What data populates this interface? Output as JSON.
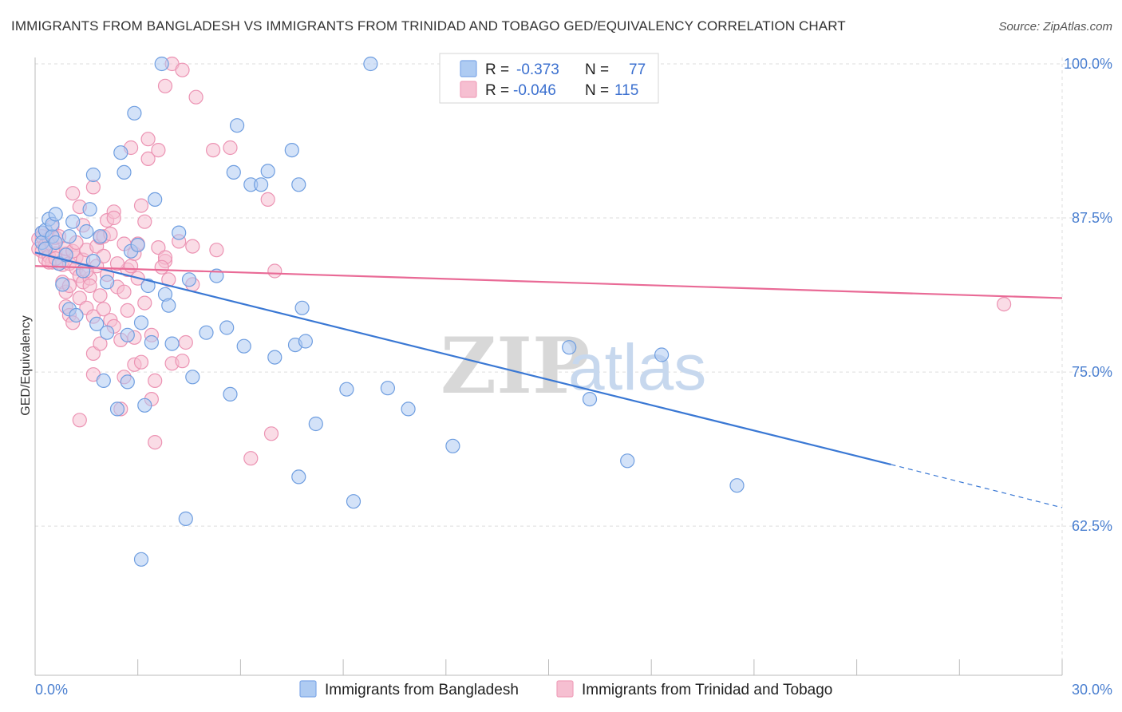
{
  "header": {
    "title": "IMMIGRANTS FROM BANGLADESH VS IMMIGRANTS FROM TRINIDAD AND TOBAGO GED/EQUIVALENCY CORRELATION CHART",
    "source": "Source: ZipAtlas.com"
  },
  "watermark": {
    "zip": "ZIP",
    "atlas": "atlas"
  },
  "legend": {
    "rows": [
      {
        "r_label": "R =",
        "r_value": "-0.373",
        "n_label": "N =",
        "n_value": "77",
        "color": "#7ea8e8"
      },
      {
        "r_label": "R =",
        "r_value": "-0.046",
        "n_label": "N =",
        "n_value": "115",
        "color": "#f0a0bb"
      }
    ]
  },
  "bottom_legend": {
    "series1": "Immigrants from Bangladesh",
    "series2": "Immigrants from Trinidad and Tobago"
  },
  "chart_data": {
    "type": "scatter",
    "title": "IMMIGRANTS FROM BANGLADESH VS IMMIGRANTS FROM TRINIDAD AND TOBAGO GED/EQUIVALENCY CORRELATION CHART",
    "xlabel": "",
    "ylabel": "GED/Equivalency",
    "xlim": [
      0,
      30
    ],
    "ylim": [
      50.4,
      101.5
    ],
    "x_tick_labels": [
      "0.0%",
      "30.0%"
    ],
    "y_tick_labels": [
      "100.0%",
      "87.5%",
      "75.0%",
      "62.5%"
    ],
    "y_ticks": [
      100,
      87.5,
      75,
      62.5
    ],
    "grid": true,
    "colors": {
      "blue": "#3a78d4",
      "pink": "#e96a96",
      "blue_fill": "#aecbf2",
      "pink_fill": "#f6bfd1"
    },
    "series": [
      {
        "name": "Immigrants from Bangladesh",
        "color": "#3a78d4",
        "points": [
          [
            0.2,
            86.3
          ],
          [
            0.2,
            85.5
          ],
          [
            0.3,
            85.0
          ],
          [
            0.3,
            86.5
          ],
          [
            0.4,
            87.4
          ],
          [
            0.5,
            86.0
          ],
          [
            0.5,
            87.0
          ],
          [
            0.6,
            87.8
          ],
          [
            0.6,
            85.5
          ],
          [
            0.7,
            83.8
          ],
          [
            0.8,
            82.1
          ],
          [
            0.9,
            84.5
          ],
          [
            1.0,
            86.0
          ],
          [
            1.0,
            80.1
          ],
          [
            1.1,
            87.2
          ],
          [
            1.2,
            79.6
          ],
          [
            1.4,
            83.2
          ],
          [
            1.5,
            86.4
          ],
          [
            1.6,
            88.2
          ],
          [
            1.7,
            91.0
          ],
          [
            1.7,
            84.0
          ],
          [
            1.8,
            78.9
          ],
          [
            1.9,
            86.0
          ],
          [
            2.0,
            74.3
          ],
          [
            2.1,
            82.3
          ],
          [
            2.1,
            78.2
          ],
          [
            2.4,
            72.0
          ],
          [
            2.5,
            92.8
          ],
          [
            2.6,
            91.2
          ],
          [
            2.7,
            78.0
          ],
          [
            2.7,
            74.2
          ],
          [
            2.8,
            84.8
          ],
          [
            2.9,
            96.0
          ],
          [
            3.0,
            85.3
          ],
          [
            3.1,
            79.0
          ],
          [
            3.2,
            72.3
          ],
          [
            3.3,
            82.0
          ],
          [
            3.4,
            77.4
          ],
          [
            3.5,
            89.0
          ],
          [
            3.7,
            100.0
          ],
          [
            3.8,
            81.3
          ],
          [
            3.9,
            80.4
          ],
          [
            4.0,
            77.3
          ],
          [
            4.2,
            86.3
          ],
          [
            4.5,
            82.5
          ],
          [
            4.6,
            74.6
          ],
          [
            5.0,
            78.2
          ],
          [
            5.3,
            82.8
          ],
          [
            5.6,
            78.6
          ],
          [
            5.7,
            73.2
          ],
          [
            5.8,
            91.2
          ],
          [
            5.9,
            95.0
          ],
          [
            6.1,
            77.1
          ],
          [
            6.3,
            90.2
          ],
          [
            6.6,
            90.2
          ],
          [
            6.8,
            91.3
          ],
          [
            7.0,
            76.2
          ],
          [
            7.5,
            93.0
          ],
          [
            7.6,
            77.2
          ],
          [
            7.7,
            90.2
          ],
          [
            7.8,
            80.2
          ],
          [
            7.9,
            77.5
          ],
          [
            8.2,
            70.8
          ],
          [
            9.1,
            73.6
          ],
          [
            9.3,
            64.5
          ],
          [
            9.8,
            100.0
          ],
          [
            10.3,
            73.7
          ],
          [
            10.9,
            72.0
          ],
          [
            12.2,
            69.0
          ],
          [
            15.6,
            77.0
          ],
          [
            16.2,
            72.8
          ],
          [
            17.3,
            67.8
          ],
          [
            18.3,
            76.4
          ],
          [
            20.5,
            65.8
          ],
          [
            3.1,
            59.8
          ],
          [
            4.4,
            63.1
          ],
          [
            7.7,
            66.5
          ]
        ]
      },
      {
        "name": "Immigrants from Trinidad and Tobago",
        "color": "#e96a96",
        "points": [
          [
            0.1,
            85.8
          ],
          [
            0.1,
            85.0
          ],
          [
            0.2,
            86.3
          ],
          [
            0.2,
            84.8
          ],
          [
            0.2,
            86.0
          ],
          [
            0.3,
            84.2
          ],
          [
            0.3,
            85.3
          ],
          [
            0.4,
            85.8
          ],
          [
            0.4,
            84.4
          ],
          [
            0.5,
            86.8
          ],
          [
            0.5,
            83.9
          ],
          [
            0.5,
            85.3
          ],
          [
            0.6,
            84.6
          ],
          [
            0.6,
            85.9
          ],
          [
            0.7,
            83.8
          ],
          [
            0.7,
            86.0
          ],
          [
            0.8,
            83.7
          ],
          [
            0.8,
            84.0
          ],
          [
            0.8,
            82.3
          ],
          [
            0.9,
            84.6
          ],
          [
            0.9,
            81.5
          ],
          [
            0.9,
            80.3
          ],
          [
            1.0,
            79.6
          ],
          [
            1.0,
            83.8
          ],
          [
            1.0,
            82.0
          ],
          [
            1.1,
            89.5
          ],
          [
            1.1,
            79.0
          ],
          [
            1.2,
            84.3
          ],
          [
            1.2,
            83.4
          ],
          [
            1.3,
            82.8
          ],
          [
            1.3,
            81.0
          ],
          [
            1.3,
            71.1
          ],
          [
            1.3,
            88.4
          ],
          [
            1.4,
            86.9
          ],
          [
            1.4,
            84.1
          ],
          [
            1.4,
            82.3
          ],
          [
            1.5,
            84.9
          ],
          [
            1.5,
            80.2
          ],
          [
            1.6,
            82.6
          ],
          [
            1.7,
            90.0
          ],
          [
            1.7,
            76.5
          ],
          [
            1.7,
            74.8
          ],
          [
            1.7,
            79.5
          ],
          [
            1.8,
            85.2
          ],
          [
            1.8,
            83.6
          ],
          [
            1.9,
            81.2
          ],
          [
            1.9,
            85.9
          ],
          [
            1.9,
            77.3
          ],
          [
            2.0,
            80.1
          ],
          [
            2.0,
            86.0
          ],
          [
            2.1,
            87.3
          ],
          [
            2.1,
            82.9
          ],
          [
            2.2,
            79.2
          ],
          [
            2.3,
            88.0
          ],
          [
            2.3,
            87.5
          ],
          [
            2.3,
            78.7
          ],
          [
            2.4,
            81.9
          ],
          [
            2.5,
            77.6
          ],
          [
            2.5,
            72.0
          ],
          [
            2.6,
            85.4
          ],
          [
            2.6,
            74.6
          ],
          [
            2.7,
            83.3
          ],
          [
            2.7,
            80.0
          ],
          [
            2.8,
            83.6
          ],
          [
            2.8,
            93.2
          ],
          [
            2.9,
            84.6
          ],
          [
            2.9,
            75.6
          ],
          [
            2.9,
            77.8
          ],
          [
            3.0,
            85.4
          ],
          [
            3.1,
            75.8
          ],
          [
            3.1,
            88.5
          ],
          [
            3.2,
            80.6
          ],
          [
            3.2,
            87.2
          ],
          [
            3.3,
            93.9
          ],
          [
            3.3,
            92.3
          ],
          [
            3.4,
            72.8
          ],
          [
            3.4,
            78.0
          ],
          [
            3.5,
            69.3
          ],
          [
            3.5,
            74.3
          ],
          [
            3.6,
            93.0
          ],
          [
            3.6,
            85.1
          ],
          [
            3.8,
            84.0
          ],
          [
            3.8,
            84.3
          ],
          [
            3.8,
            98.2
          ],
          [
            3.9,
            82.5
          ],
          [
            4.0,
            75.7
          ],
          [
            4.0,
            100.0
          ],
          [
            4.2,
            85.6
          ],
          [
            4.3,
            99.5
          ],
          [
            4.3,
            75.9
          ],
          [
            4.4,
            77.4
          ],
          [
            4.6,
            85.2
          ],
          [
            4.6,
            82.1
          ],
          [
            4.7,
            97.3
          ],
          [
            5.2,
            93.0
          ],
          [
            5.3,
            84.9
          ],
          [
            5.7,
            93.2
          ],
          [
            6.3,
            68.0
          ],
          [
            6.8,
            89.0
          ],
          [
            6.9,
            70.0
          ],
          [
            7.0,
            83.2
          ],
          [
            28.3,
            80.5
          ],
          [
            0.4,
            83.9
          ],
          [
            0.6,
            84.2
          ],
          [
            0.9,
            85.0
          ],
          [
            1.1,
            84.8
          ],
          [
            1.2,
            85.5
          ],
          [
            1.5,
            83.2
          ],
          [
            1.6,
            82.0
          ],
          [
            2.0,
            84.4
          ],
          [
            2.2,
            86.2
          ],
          [
            2.4,
            83.8
          ],
          [
            2.6,
            81.5
          ],
          [
            3.0,
            82.6
          ],
          [
            3.7,
            83.5
          ]
        ]
      }
    ],
    "trendlines": [
      {
        "series": "Immigrants from Bangladesh",
        "x": [
          0,
          25.0
        ],
        "y": [
          84.7,
          67.5
        ],
        "dashed_to": [
          30.0,
          64.0
        ]
      },
      {
        "series": "Immigrants from Trinidad and Tobago",
        "x": [
          0,
          30.0
        ],
        "y": [
          83.6,
          81.0
        ]
      }
    ]
  }
}
